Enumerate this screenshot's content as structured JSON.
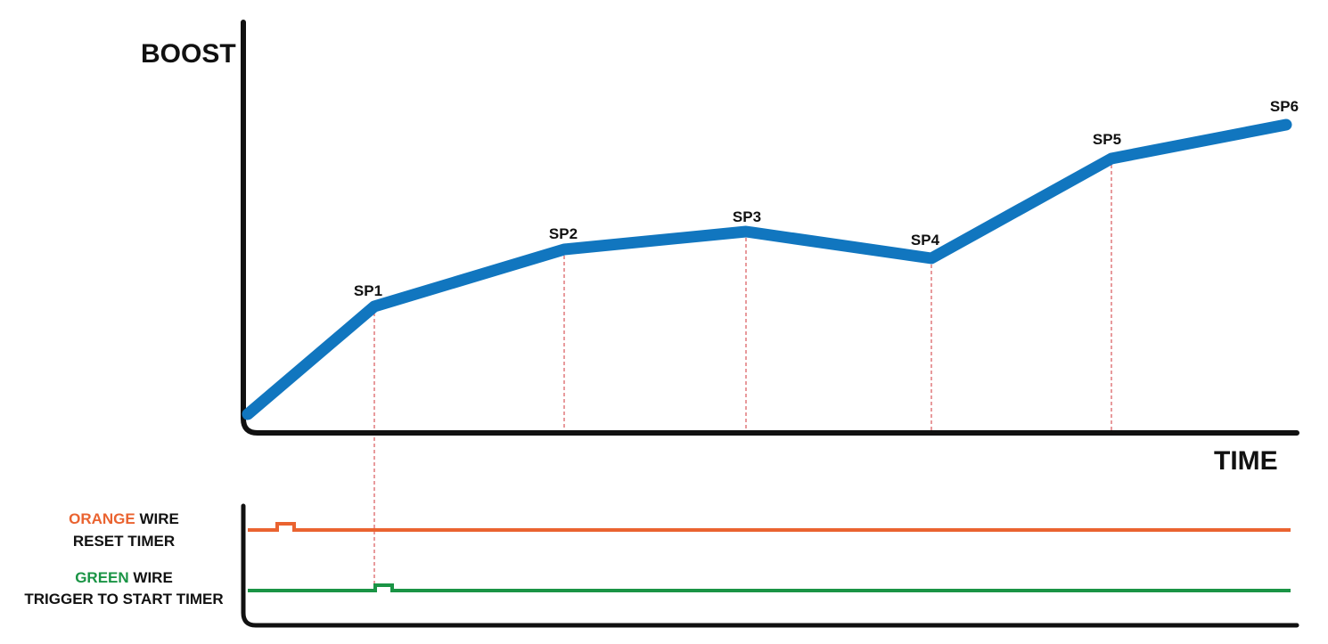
{
  "diagram": {
    "y_axis_label": "BOOST",
    "x_axis_label": "TIME",
    "set_points": [
      "SP1",
      "SP2",
      "SP3",
      "SP4",
      "SP5",
      "SP6"
    ],
    "wires": [
      {
        "color_word": "ORANGE",
        "word": "WIRE",
        "function": "RESET TIMER"
      },
      {
        "color_word": "GREEN",
        "word": "WIRE",
        "function": "TRIGGER TO START TIMER"
      }
    ]
  }
}
